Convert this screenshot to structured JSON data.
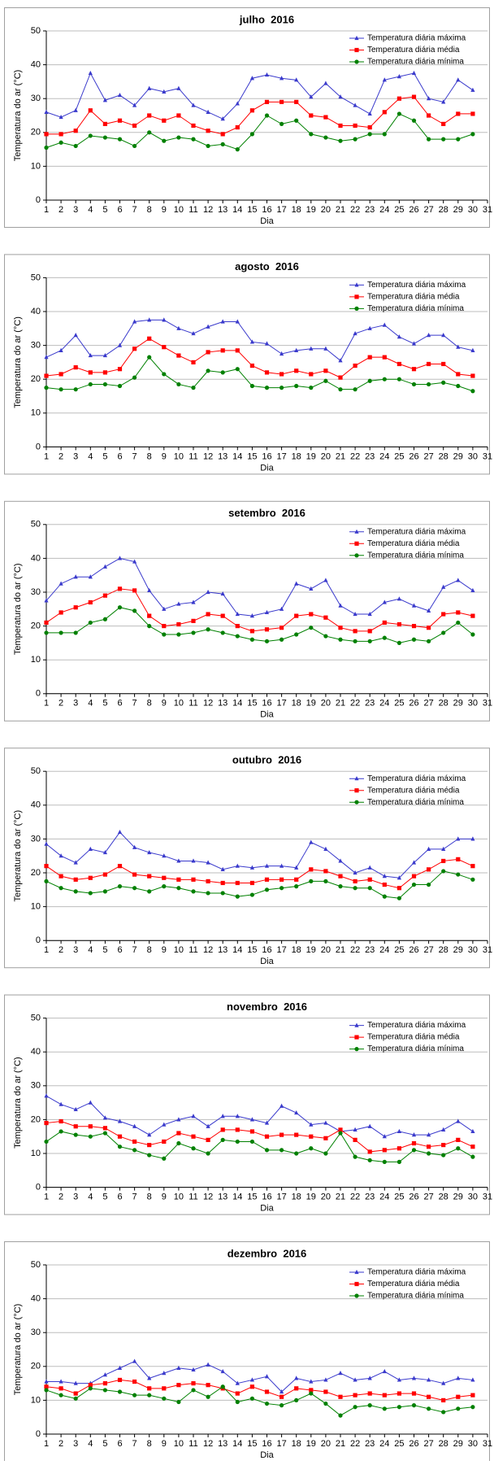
{
  "chart_data": [
    {
      "type": "line",
      "title": "julho  2016",
      "x_label": "Dia",
      "y_label": "Temperatura do ar (°C)",
      "x": [
        1,
        2,
        3,
        4,
        5,
        6,
        7,
        8,
        9,
        10,
        11,
        12,
        13,
        14,
        15,
        16,
        17,
        18,
        19,
        20,
        21,
        22,
        23,
        24,
        25,
        26,
        27,
        28,
        29,
        30
      ],
      "xlim": [
        1,
        31
      ],
      "xticks": [
        1,
        2,
        3,
        4,
        5,
        6,
        7,
        8,
        9,
        10,
        11,
        12,
        13,
        14,
        15,
        16,
        17,
        18,
        19,
        20,
        21,
        22,
        23,
        24,
        25,
        26,
        27,
        28,
        29,
        30,
        31
      ],
      "ylim": [
        0,
        50
      ],
      "yticks": [
        0,
        10,
        20,
        30,
        40,
        50
      ],
      "grid": true,
      "legend": "upper right",
      "series": [
        {
          "name": "Temperatura diária máxima",
          "color": "#3a3acc",
          "marker": "triangle",
          "values": [
            26,
            24.5,
            26.5,
            37.5,
            29.5,
            31,
            28,
            33,
            32,
            33,
            28,
            26,
            24,
            28.5,
            36,
            37,
            36,
            35.5,
            30.5,
            34.5,
            30.5,
            28,
            25.5,
            35.5,
            36.5,
            37.5,
            30,
            29,
            35.5,
            32.5
          ]
        },
        {
          "name": "Temperatura diária média",
          "color": "#ff0000",
          "marker": "square",
          "values": [
            19.5,
            19.5,
            20.5,
            26.5,
            22.5,
            23.5,
            22,
            25,
            23.5,
            25,
            22,
            20.5,
            19.5,
            21.5,
            26.5,
            29,
            29,
            29,
            25,
            24.5,
            22,
            22,
            21.5,
            26,
            30,
            30.5,
            25,
            22.5,
            25.5,
            25.5
          ]
        },
        {
          "name": "Temperatura diária mínima",
          "color": "#008000",
          "marker": "circle",
          "values": [
            15.5,
            17,
            16,
            19,
            18.5,
            18,
            16,
            20,
            17.5,
            18.5,
            18,
            16,
            16.5,
            15,
            19.5,
            25,
            22.5,
            23.5,
            19.5,
            18.5,
            17.5,
            18,
            19.5,
            19.5,
            25.5,
            23.5,
            18,
            18,
            18,
            19.5
          ]
        }
      ]
    },
    {
      "type": "line",
      "title": "agosto  2016",
      "x_label": "Dia",
      "y_label": "Temperatura do ar (°C)",
      "x": [
        1,
        2,
        3,
        4,
        5,
        6,
        7,
        8,
        9,
        10,
        11,
        12,
        13,
        14,
        15,
        16,
        17,
        18,
        19,
        20,
        21,
        22,
        23,
        24,
        25,
        26,
        27,
        28,
        29,
        30
      ],
      "xlim": [
        1,
        31
      ],
      "xticks": [
        1,
        2,
        3,
        4,
        5,
        6,
        7,
        8,
        9,
        10,
        11,
        12,
        13,
        14,
        15,
        16,
        17,
        18,
        19,
        20,
        21,
        22,
        23,
        24,
        25,
        26,
        27,
        28,
        29,
        30,
        31
      ],
      "ylim": [
        0,
        50
      ],
      "yticks": [
        0,
        10,
        20,
        30,
        40,
        50
      ],
      "grid": true,
      "legend": "upper right",
      "series": [
        {
          "name": "Temperatura diária máxima",
          "color": "#3a3acc",
          "marker": "triangle",
          "values": [
            26.5,
            28.5,
            33,
            27,
            27,
            30,
            37,
            37.5,
            37.5,
            35,
            33.5,
            35.5,
            37,
            37,
            31,
            30.5,
            27.5,
            28.5,
            29,
            29,
            25.5,
            33.5,
            35,
            36,
            32.5,
            30.5,
            33,
            33,
            29.5,
            28.5
          ]
        },
        {
          "name": "Temperatura diária média",
          "color": "#ff0000",
          "marker": "square",
          "values": [
            21,
            21.5,
            23.5,
            22,
            22,
            23,
            29,
            32,
            29.5,
            27,
            25,
            28,
            28.5,
            28.5,
            24,
            22,
            21.5,
            22.5,
            21.5,
            22.5,
            20.5,
            24,
            26.5,
            26.5,
            24.5,
            23,
            24.5,
            24.5,
            21.5,
            21
          ]
        },
        {
          "name": "Temperatura diária mínima",
          "color": "#008000",
          "marker": "circle",
          "values": [
            17.5,
            17,
            17,
            18.5,
            18.5,
            18,
            20.5,
            26.5,
            21.5,
            18.5,
            17.5,
            22.5,
            22,
            23,
            18,
            17.5,
            17.5,
            18,
            17.5,
            19.5,
            17,
            17,
            19.5,
            20,
            20,
            18.5,
            18.5,
            19,
            18,
            16.5
          ]
        }
      ]
    },
    {
      "type": "line",
      "title": "setembro  2016",
      "x_label": "Dia",
      "y_label": "Temperatura do ar (°C)",
      "x": [
        1,
        2,
        3,
        4,
        5,
        6,
        7,
        8,
        9,
        10,
        11,
        12,
        13,
        14,
        15,
        16,
        17,
        18,
        19,
        20,
        21,
        22,
        23,
        24,
        25,
        26,
        27,
        28,
        29,
        30
      ],
      "xlim": [
        1,
        31
      ],
      "xticks": [
        1,
        2,
        3,
        4,
        5,
        6,
        7,
        8,
        9,
        10,
        11,
        12,
        13,
        14,
        15,
        16,
        17,
        18,
        19,
        20,
        21,
        22,
        23,
        24,
        25,
        26,
        27,
        28,
        29,
        30,
        31
      ],
      "ylim": [
        0,
        50
      ],
      "yticks": [
        0,
        10,
        20,
        30,
        40,
        50
      ],
      "grid": true,
      "legend": "upper right",
      "series": [
        {
          "name": "Temperatura diária máxima",
          "color": "#3a3acc",
          "marker": "triangle",
          "values": [
            27.5,
            32.5,
            34.5,
            34.5,
            37.5,
            40,
            39,
            30.5,
            25,
            26.5,
            27,
            30,
            29.5,
            23.5,
            23,
            24,
            25,
            32.5,
            31,
            33.5,
            26,
            23.5,
            23.5,
            27,
            28,
            26,
            24.5,
            31.5,
            33.5,
            30.5
          ]
        },
        {
          "name": "Temperatura diária média",
          "color": "#ff0000",
          "marker": "square",
          "values": [
            21,
            24,
            25.5,
            27,
            29,
            31,
            30.5,
            23,
            20,
            20.5,
            21.5,
            23.5,
            23,
            20,
            18.5,
            19,
            19.5,
            23,
            23.5,
            22.5,
            19.5,
            18.5,
            18.5,
            21,
            20.5,
            20,
            19.5,
            23.5,
            24,
            23
          ]
        },
        {
          "name": "Temperatura diária mínima",
          "color": "#008000",
          "marker": "circle",
          "values": [
            18,
            18,
            18,
            21,
            22,
            25.5,
            24.5,
            20,
            17.5,
            17.5,
            18,
            19,
            18,
            17,
            16,
            15.5,
            16,
            17.5,
            19.5,
            17,
            16,
            15.5,
            15.5,
            16.5,
            15,
            16,
            15.5,
            18,
            21,
            17.5
          ]
        }
      ]
    },
    {
      "type": "line",
      "title": "outubro  2016",
      "x_label": "Dia",
      "y_label": "Temperatura do ar (°C)",
      "x": [
        1,
        2,
        3,
        4,
        5,
        6,
        7,
        8,
        9,
        10,
        11,
        12,
        13,
        14,
        15,
        16,
        17,
        18,
        19,
        20,
        21,
        22,
        23,
        24,
        25,
        26,
        27,
        28,
        29,
        30
      ],
      "xlim": [
        1,
        31
      ],
      "xticks": [
        1,
        2,
        3,
        4,
        5,
        6,
        7,
        8,
        9,
        10,
        11,
        12,
        13,
        14,
        15,
        16,
        17,
        18,
        19,
        20,
        21,
        22,
        23,
        24,
        25,
        26,
        27,
        28,
        29,
        30,
        31
      ],
      "ylim": [
        0,
        50
      ],
      "yticks": [
        0,
        10,
        20,
        30,
        40,
        50
      ],
      "grid": true,
      "legend": "upper right",
      "series": [
        {
          "name": "Temperatura diária máxima",
          "color": "#3a3acc",
          "marker": "triangle",
          "values": [
            28.5,
            25,
            23,
            27,
            26,
            32,
            27.5,
            26,
            25,
            23.5,
            23.5,
            23,
            21,
            22,
            21.5,
            22,
            22,
            21.5,
            29,
            27,
            23.5,
            20,
            21.5,
            19,
            18.5,
            23,
            27,
            27,
            30,
            30
          ]
        },
        {
          "name": "Temperatura diária média",
          "color": "#ff0000",
          "marker": "square",
          "values": [
            22,
            19,
            18,
            18.5,
            19.5,
            22,
            19.5,
            19,
            18.5,
            18,
            18,
            17.5,
            17,
            17,
            17,
            18,
            18,
            18,
            21,
            20.5,
            19,
            17.5,
            18,
            16.5,
            15.5,
            19,
            21,
            23.5,
            24,
            22
          ]
        },
        {
          "name": "Temperatura diária mínima",
          "color": "#008000",
          "marker": "circle",
          "values": [
            17.5,
            15.5,
            14.5,
            14,
            14.5,
            16,
            15.5,
            14.5,
            16,
            15.5,
            14.5,
            14,
            14,
            13,
            13.5,
            15,
            15.5,
            16,
            17.5,
            17.5,
            16,
            15.5,
            15.5,
            13,
            12.5,
            16.5,
            16.5,
            20.5,
            19.5,
            18
          ]
        }
      ]
    },
    {
      "type": "line",
      "title": "novembro  2016",
      "x_label": "Dia",
      "y_label": "Temperatura do ar (°C)",
      "x": [
        1,
        2,
        3,
        4,
        5,
        6,
        7,
        8,
        9,
        10,
        11,
        12,
        13,
        14,
        15,
        16,
        17,
        18,
        19,
        20,
        21,
        22,
        23,
        24,
        25,
        26,
        27,
        28,
        29,
        30
      ],
      "xlim": [
        1,
        31
      ],
      "xticks": [
        1,
        2,
        3,
        4,
        5,
        6,
        7,
        8,
        9,
        10,
        11,
        12,
        13,
        14,
        15,
        16,
        17,
        18,
        19,
        20,
        21,
        22,
        23,
        24,
        25,
        26,
        27,
        28,
        29,
        30,
        31
      ],
      "ylim": [
        0,
        50
      ],
      "yticks": [
        0,
        10,
        20,
        30,
        40,
        50
      ],
      "grid": true,
      "legend": "upper right",
      "series": [
        {
          "name": "Temperatura diária máxima",
          "color": "#3a3acc",
          "marker": "triangle",
          "values": [
            27,
            24.5,
            23,
            25,
            20.5,
            19.5,
            18,
            15.5,
            18.5,
            20,
            21,
            18,
            21,
            21,
            20,
            19,
            24,
            22,
            18.5,
            19,
            16.5,
            17,
            18,
            15,
            16.5,
            15.5,
            15.5,
            17,
            19.5,
            16.5
          ]
        },
        {
          "name": "Temperatura diária média",
          "color": "#ff0000",
          "marker": "square",
          "values": [
            19,
            19.5,
            18,
            18,
            17.5,
            15,
            13.5,
            12.5,
            13.5,
            16,
            15,
            14,
            17,
            17,
            16.5,
            15,
            15.5,
            15.5,
            15,
            14.5,
            17,
            14,
            10.5,
            11,
            11.5,
            13,
            12,
            12.5,
            14,
            12
          ]
        },
        {
          "name": "Temperatura diária mínima",
          "color": "#008000",
          "marker": "circle",
          "values": [
            13.5,
            16.5,
            15.5,
            15,
            16,
            12,
            11,
            9.5,
            8.5,
            13,
            11.5,
            10,
            14,
            13.5,
            13.5,
            11,
            11,
            10,
            11.5,
            10,
            16,
            9,
            8,
            7.5,
            7.5,
            11,
            10,
            9.5,
            11.5,
            9
          ]
        }
      ]
    },
    {
      "type": "line",
      "title": "dezembro  2016",
      "x_label": "Dia",
      "y_label": "Temperatura do ar (°C)",
      "x": [
        1,
        2,
        3,
        4,
        5,
        6,
        7,
        8,
        9,
        10,
        11,
        12,
        13,
        14,
        15,
        16,
        17,
        18,
        19,
        20,
        21,
        22,
        23,
        24,
        25,
        26,
        27,
        28,
        29,
        30
      ],
      "xlim": [
        1,
        31
      ],
      "xticks": [
        1,
        2,
        3,
        4,
        5,
        6,
        7,
        8,
        9,
        10,
        11,
        12,
        13,
        14,
        15,
        16,
        17,
        18,
        19,
        20,
        21,
        22,
        23,
        24,
        25,
        26,
        27,
        28,
        29,
        30,
        31
      ],
      "ylim": [
        0,
        50
      ],
      "yticks": [
        0,
        10,
        20,
        30,
        40,
        50
      ],
      "grid": true,
      "legend": "upper right",
      "series": [
        {
          "name": "Temperatura diária máxima",
          "color": "#3a3acc",
          "marker": "triangle",
          "values": [
            15.5,
            15.5,
            15,
            15,
            17.5,
            19.5,
            21.5,
            16.5,
            18,
            19.5,
            19,
            20.5,
            18.5,
            15,
            16,
            17,
            12.5,
            16.5,
            15.5,
            16,
            18,
            16,
            16.5,
            18.5,
            16,
            16.5,
            16,
            15,
            16.5,
            16
          ]
        },
        {
          "name": "Temperatura diária média",
          "color": "#ff0000",
          "marker": "square",
          "values": [
            14,
            13.5,
            12,
            14.5,
            15,
            16,
            15.5,
            13.5,
            13.5,
            14.5,
            15,
            14.5,
            13.5,
            12,
            14,
            12.5,
            11,
            13.5,
            13,
            12.5,
            11,
            11.5,
            12,
            11.5,
            12,
            12,
            11,
            10,
            11,
            11.5
          ]
        },
        {
          "name": "Temperatura diária mínima",
          "color": "#008000",
          "marker": "circle",
          "values": [
            13,
            11.5,
            10.5,
            13.5,
            13,
            12.5,
            11.5,
            11.5,
            10.5,
            9.5,
            13,
            11,
            14,
            9.5,
            10.5,
            9,
            8.5,
            10,
            12,
            9,
            5.5,
            8,
            8.5,
            7.5,
            8,
            8.5,
            7.5,
            6.5,
            7.5,
            8
          ]
        }
      ]
    }
  ]
}
